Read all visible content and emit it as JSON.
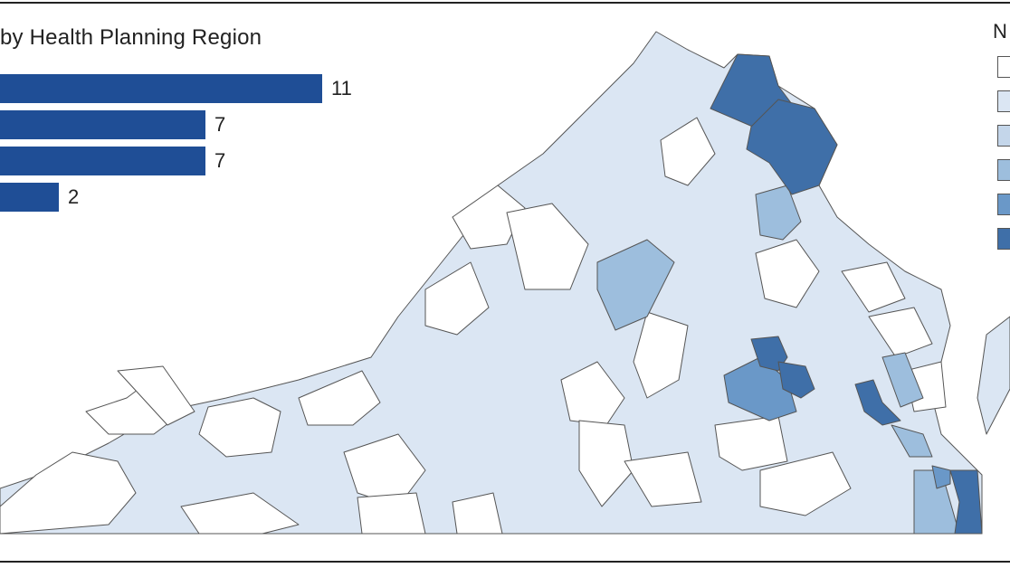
{
  "chart_title": "by Health Planning Region",
  "bars": [
    {
      "value": 11,
      "label": "11"
    },
    {
      "value": 7,
      "label": "7"
    },
    {
      "value": 7,
      "label": "7"
    },
    {
      "value": 2,
      "label": "2"
    }
  ],
  "bar_color": "#1f4e96",
  "legend": {
    "title": "N",
    "swatch_colors": [
      "#ffffff",
      "#dbe6f3",
      "#c4d6ea",
      "#9dbedd",
      "#6a98c8",
      "#3f6fa8"
    ]
  },
  "map": {
    "region": "Virginia",
    "border_color": "#555555",
    "shade_colors": {
      "none": "#ffffff",
      "low": "#dbe6f3",
      "mid": "#9dbedd",
      "high": "#6a98c8",
      "top": "#3f6fa8"
    }
  }
}
